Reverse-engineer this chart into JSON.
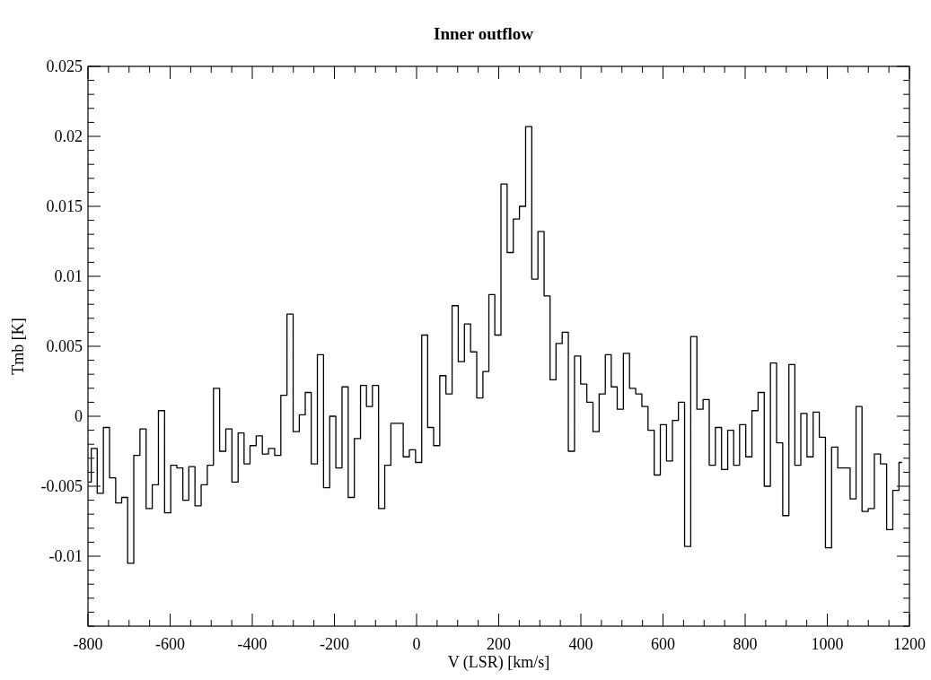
{
  "chart_data": {
    "type": "step",
    "title": "Inner outflow",
    "xlabel": "V (LSR) [km/s]",
    "ylabel": "Tmb [K]",
    "xlim": [
      -800,
      1200
    ],
    "ylim": [
      -0.015,
      0.025
    ],
    "xticks": [
      -800,
      {
        "value": -750,
        "label": null
      },
      {
        "value": -700,
        "label": null
      },
      {
        "value": -650,
        "label": null
      },
      -600,
      {
        "value": -550,
        "label": null
      },
      {
        "value": -500,
        "label": null
      },
      {
        "value": -450,
        "label": null
      },
      -400,
      {
        "value": -350,
        "label": null
      },
      {
        "value": -300,
        "label": null
      },
      {
        "value": -250,
        "label": null
      },
      -200,
      {
        "value": -150,
        "label": null
      },
      {
        "value": -100,
        "label": null
      },
      {
        "value": -50,
        "label": null
      },
      0,
      {
        "value": 50,
        "label": null
      },
      {
        "value": 100,
        "label": null
      },
      {
        "value": 150,
        "label": null
      },
      200,
      {
        "value": 250,
        "label": null
      },
      {
        "value": 300,
        "label": null
      },
      {
        "value": 350,
        "label": null
      },
      400,
      {
        "value": 450,
        "label": null
      },
      {
        "value": 500,
        "label": null
      },
      {
        "value": 550,
        "label": null
      },
      600,
      {
        "value": 650,
        "label": null
      },
      {
        "value": 700,
        "label": null
      },
      {
        "value": 750,
        "label": null
      },
      800,
      {
        "value": 850,
        "label": null
      },
      {
        "value": 900,
        "label": null
      },
      {
        "value": 950,
        "label": null
      },
      1000,
      {
        "value": 1050,
        "label": null
      },
      {
        "value": 1100,
        "label": null
      },
      {
        "value": 1150,
        "label": null
      },
      1200
    ],
    "yticks": [
      {
        "value": -0.015,
        "label": null
      },
      {
        "value": -0.014,
        "label": null
      },
      {
        "value": -0.013,
        "label": null
      },
      {
        "value": -0.012,
        "label": null
      },
      {
        "value": -0.011,
        "label": null
      },
      -0.01,
      {
        "value": -0.009,
        "label": null
      },
      {
        "value": -0.008,
        "label": null
      },
      {
        "value": -0.007,
        "label": null
      },
      {
        "value": -0.006,
        "label": null
      },
      -0.005,
      {
        "value": -0.004,
        "label": null
      },
      {
        "value": -0.003,
        "label": null
      },
      {
        "value": -0.002,
        "label": null
      },
      {
        "value": -0.001,
        "label": null
      },
      0,
      {
        "value": 0.001,
        "label": null
      },
      {
        "value": 0.002,
        "label": null
      },
      {
        "value": 0.003,
        "label": null
      },
      {
        "value": 0.004,
        "label": null
      },
      0.005,
      {
        "value": 0.006,
        "label": null
      },
      {
        "value": 0.007,
        "label": null
      },
      {
        "value": 0.008,
        "label": null
      },
      {
        "value": 0.009,
        "label": null
      },
      0.01,
      {
        "value": 0.011,
        "label": null
      },
      {
        "value": 0.012,
        "label": null
      },
      {
        "value": 0.013,
        "label": null
      },
      {
        "value": 0.014,
        "label": null
      },
      0.015,
      {
        "value": 0.016,
        "label": null
      },
      {
        "value": 0.017,
        "label": null
      },
      {
        "value": 0.018,
        "label": null
      },
      {
        "value": 0.019,
        "label": null
      },
      0.02,
      {
        "value": 0.021,
        "label": null
      },
      {
        "value": 0.022,
        "label": null
      },
      {
        "value": 0.023,
        "label": null
      },
      {
        "value": 0.024,
        "label": null
      },
      0.025
    ],
    "grid": false,
    "marker": "none",
    "line_style": "solid",
    "series": [
      {
        "color": "#000000",
        "x": [
          -799,
          -785,
          -770,
          -755,
          -740,
          -725,
          -711,
          -696,
          -681,
          -666,
          -651,
          -636,
          -621,
          -606,
          -591,
          -576,
          -562,
          -547,
          -532,
          -517,
          -502,
          -487,
          -472,
          -457,
          -442,
          -427,
          -413,
          -398,
          -383,
          -368,
          -353,
          -338,
          -323,
          -308,
          -293,
          -278,
          -264,
          -249,
          -234,
          -219,
          -204,
          -189,
          -174,
          -159,
          -144,
          -129,
          -115,
          -100,
          -85,
          -70,
          -55,
          -40,
          -25,
          -10,
          5,
          20,
          34,
          49,
          64,
          79,
          94,
          109,
          124,
          139,
          154,
          169,
          183,
          198,
          213,
          228,
          243,
          258,
          273,
          288,
          303,
          318,
          332,
          347,
          362,
          377,
          392,
          407,
          422,
          437,
          452,
          467,
          481,
          496,
          511,
          526,
          541,
          556,
          571,
          586,
          601,
          616,
          630,
          645,
          660,
          675,
          690,
          705,
          720,
          735,
          750,
          765,
          779,
          794,
          809,
          824,
          839,
          854,
          869,
          884,
          899,
          914,
          928,
          943,
          958,
          973,
          988,
          1003,
          1018,
          1033,
          1048,
          1063,
          1077,
          1092,
          1107,
          1122,
          1137,
          1152,
          1167,
          1182
        ],
        "values": [
          -0.0047,
          -0.0023,
          -0.0055,
          -0.0008,
          -0.0044,
          -0.0062,
          -0.0058,
          -0.0105,
          -0.0028,
          -0.0009,
          -0.0066,
          -0.0049,
          0.0004,
          -0.0069,
          -0.0035,
          -0.0037,
          -0.006,
          -0.0036,
          -0.0064,
          -0.0049,
          -0.0035,
          0.002,
          -0.0025,
          -0.0009,
          -0.0047,
          -0.0012,
          -0.0034,
          -0.0021,
          -0.0014,
          -0.0027,
          -0.0023,
          -0.0028,
          0.0015,
          0.0073,
          -0.0011,
          0.0001,
          0.0017,
          -0.0034,
          0.0044,
          -0.0051,
          0,
          -0.0037,
          0.0021,
          -0.0058,
          -0.0016,
          0.0022,
          0.0007,
          0.0022,
          -0.0066,
          -0.0035,
          -0.0005,
          -0.0005,
          -0.0029,
          -0.0024,
          -0.0033,
          0.0058,
          -0.0008,
          -0.0021,
          0.0029,
          0.0016,
          0.0079,
          0.0039,
          0.0066,
          0.0046,
          0.0013,
          0.0032,
          0.0087,
          0.0058,
          0.0166,
          0.0117,
          0.0141,
          0.015,
          0.0207,
          0.0098,
          0.0132,
          0.0086,
          0.0026,
          0.0052,
          0.006,
          -0.0025,
          0.0043,
          0.0023,
          0.001,
          -0.0011,
          0.0016,
          0.0044,
          0.0021,
          0.0005,
          0.0045,
          0.002,
          0.0016,
          0.0007,
          -0.001,
          -0.0042,
          -0.0006,
          -0.0032,
          -0.0003,
          0.001,
          -0.0093,
          0.0057,
          0.0005,
          0.0012,
          -0.0035,
          -0.0008,
          -0.0038,
          -0.001,
          -0.0035,
          -0.0006,
          -0.0029,
          0.0004,
          0.0017,
          -0.005,
          0.0038,
          -0.0019,
          -0.0071,
          0.0037,
          -0.0035,
          0.0002,
          -0.0029,
          0.0003,
          -0.0015,
          -0.0094,
          -0.0022,
          -0.0037,
          -0.0037,
          -0.0059,
          0.0007,
          -0.0068,
          -0.0066,
          -0.0027,
          -0.0034,
          -0.0081,
          -0.0053,
          -0.0033
        ]
      }
    ]
  }
}
